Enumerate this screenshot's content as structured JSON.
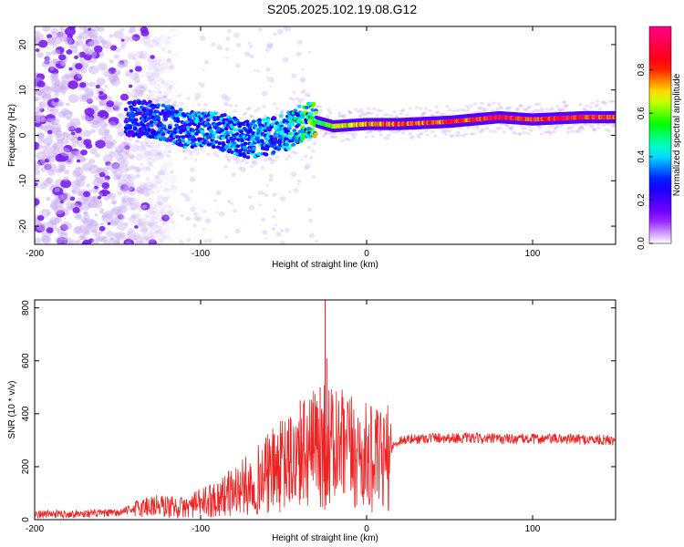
{
  "title": "S205.2025.102.19.08.G12",
  "chart_data": [
    {
      "type": "heatmap",
      "xlabel": "Height of straight line (km)",
      "ylabel": "Frequency (Hz)",
      "xlim": [
        -200,
        150
      ],
      "ylim": [
        -24,
        24
      ],
      "xticks": [
        -200,
        -100,
        0,
        100
      ],
      "yticks": [
        -20,
        -10,
        0,
        10,
        20
      ],
      "colorbar": {
        "label": "Normalized spectral amplitude",
        "range": [
          0,
          1
        ],
        "ticks": [
          0.0,
          0.2,
          0.4,
          0.6,
          0.8
        ],
        "tick_labels": [
          "0.0",
          "0.2",
          "0.4",
          "0.6",
          "0.8"
        ],
        "colormap": [
          "#ffffff",
          "#8800ff",
          "#0000ff",
          "#00ffff",
          "#00ff00",
          "#ffff00",
          "#ff0000",
          "#ff0088"
        ]
      },
      "ridge": [
        {
          "x": -145,
          "freq": 4.0,
          "amplitude": 0.25
        },
        {
          "x": -130,
          "freq": 3.5,
          "amplitude": 0.25
        },
        {
          "x": -110,
          "freq": 1.5,
          "amplitude": 0.3
        },
        {
          "x": -90,
          "freq": 1.0,
          "amplitude": 0.3
        },
        {
          "x": -70,
          "freq": -1.0,
          "amplitude": 0.3
        },
        {
          "x": -50,
          "freq": 0.5,
          "amplitude": 0.3
        },
        {
          "x": -35,
          "freq": 3.5,
          "amplitude": 0.45
        },
        {
          "x": -20,
          "freq": 2.0,
          "amplitude": 0.7
        },
        {
          "x": 0,
          "freq": 2.5,
          "amplitude": 0.8
        },
        {
          "x": 20,
          "freq": 2.5,
          "amplitude": 0.9
        },
        {
          "x": 50,
          "freq": 3.0,
          "amplitude": 0.9
        },
        {
          "x": 80,
          "freq": 4.0,
          "amplitude": 0.95
        },
        {
          "x": 100,
          "freq": 3.5,
          "amplitude": 0.95
        },
        {
          "x": 130,
          "freq": 4.0,
          "amplitude": 0.95
        },
        {
          "x": 150,
          "freq": 4.0,
          "amplitude": 0.95
        }
      ],
      "noise_region": {
        "x_range": [
          -200,
          -140
        ],
        "freq_range": [
          -24,
          24
        ],
        "amplitude": 0.2
      }
    },
    {
      "type": "line",
      "xlabel": "Height of straight line (km)",
      "ylabel": "SNR (10 * v/v)",
      "xlim": [
        -200,
        150
      ],
      "ylim": [
        0,
        830
      ],
      "xticks": [
        -200,
        -100,
        0,
        100
      ],
      "yticks": [
        0,
        200,
        400,
        600,
        800
      ],
      "color": "#ee2222",
      "envelope": [
        {
          "x": -200,
          "y": 20
        },
        {
          "x": -150,
          "y": 25
        },
        {
          "x": -130,
          "y": 60
        },
        {
          "x": -110,
          "y": 50
        },
        {
          "x": -90,
          "y": 90
        },
        {
          "x": -70,
          "y": 150
        },
        {
          "x": -55,
          "y": 210
        },
        {
          "x": -40,
          "y": 260
        },
        {
          "x": -30,
          "y": 300
        },
        {
          "x": -25,
          "y": 310
        },
        {
          "x": -10,
          "y": 280
        },
        {
          "x": 0,
          "y": 260
        },
        {
          "x": 10,
          "y": 240
        },
        {
          "x": 20,
          "y": 300
        },
        {
          "x": 40,
          "y": 310
        },
        {
          "x": 80,
          "y": 305
        },
        {
          "x": 120,
          "y": 305
        },
        {
          "x": 150,
          "y": 300
        }
      ],
      "spikes": [
        {
          "x": -25,
          "y": 830
        },
        {
          "x": -24,
          "y": 610
        },
        {
          "x": -28,
          "y": 500
        },
        {
          "x": -40,
          "y": 450
        },
        {
          "x": -38,
          "y": 440
        }
      ]
    }
  ]
}
